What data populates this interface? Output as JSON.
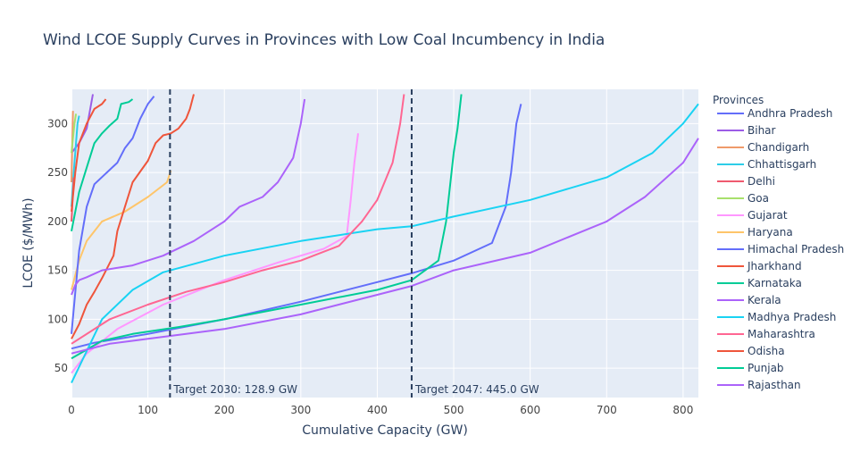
{
  "chart_data": {
    "type": "line",
    "title": "Wind LCOE Supply Curves in Provinces with Low Coal Incumbency in India",
    "xlabel": "Cumulative Capacity (GW)",
    "ylabel": "LCOE ($/MWh)",
    "xlim": [
      0,
      820
    ],
    "ylim": [
      20,
      335
    ],
    "xticks": [
      0,
      100,
      200,
      300,
      400,
      500,
      600,
      700,
      800
    ],
    "yticks": [
      50,
      100,
      150,
      200,
      250,
      300
    ],
    "grid": true,
    "legend_title": "Provinces",
    "legend_placement": "right",
    "targets": [
      {
        "x": 128.9,
        "label": "Target 2030: 128.9 GW"
      },
      {
        "x": 445.0,
        "label": "Target 2047: 445.0 GW"
      }
    ],
    "series": [
      {
        "name": "Andhra Pradesh",
        "color": "#636efa",
        "points": [
          [
            0,
            70
          ],
          [
            30,
            76
          ],
          [
            100,
            85
          ],
          [
            200,
            100
          ],
          [
            300,
            118
          ],
          [
            400,
            138
          ],
          [
            445,
            147
          ],
          [
            500,
            160
          ],
          [
            550,
            178
          ],
          [
            568,
            215
          ],
          [
            575,
            250
          ],
          [
            582,
            300
          ],
          [
            588,
            320
          ]
        ]
      },
      {
        "name": "Bihar",
        "color": "#9c5ce6",
        "points": [
          [
            0,
            270
          ],
          [
            10,
            280
          ],
          [
            20,
            295
          ],
          [
            28,
            330
          ]
        ]
      },
      {
        "name": "Chandigarh",
        "color": "#ef9a6a",
        "points": [
          [
            0,
            240
          ],
          [
            1,
            280
          ],
          [
            2,
            313
          ]
        ]
      },
      {
        "name": "Chhattisgarh",
        "color": "#2dcde8",
        "points": [
          [
            0,
            215
          ],
          [
            2,
            240
          ],
          [
            4,
            260
          ],
          [
            6,
            280
          ],
          [
            8,
            300
          ],
          [
            10,
            308
          ]
        ]
      },
      {
        "name": "Delhi",
        "color": "#ef5a6f",
        "points": [
          [
            0,
            200
          ],
          [
            1,
            215
          ],
          [
            2,
            230
          ],
          [
            3,
            245
          ]
        ]
      },
      {
        "name": "Goa",
        "color": "#a8e06c",
        "points": [
          [
            0,
            270
          ],
          [
            2,
            285
          ],
          [
            4,
            300
          ],
          [
            6,
            310
          ]
        ]
      },
      {
        "name": "Gujarat",
        "color": "#ff97ff",
        "points": [
          [
            0,
            45
          ],
          [
            20,
            65
          ],
          [
            60,
            90
          ],
          [
            120,
            115
          ],
          [
            200,
            140
          ],
          [
            270,
            158
          ],
          [
            330,
            172
          ],
          [
            360,
            185
          ],
          [
            365,
            220
          ],
          [
            370,
            260
          ],
          [
            375,
            290
          ]
        ]
      },
      {
        "name": "Haryana",
        "color": "#fec56a",
        "points": [
          [
            0,
            130
          ],
          [
            10,
            160
          ],
          [
            20,
            180
          ],
          [
            40,
            200
          ],
          [
            70,
            210
          ],
          [
            100,
            225
          ],
          [
            125,
            240
          ],
          [
            130,
            252
          ]
        ]
      },
      {
        "name": "Himachal Pradesh",
        "color": "#636efa",
        "points": [
          [
            0,
            85
          ],
          [
            10,
            170
          ],
          [
            20,
            215
          ],
          [
            30,
            238
          ],
          [
            60,
            260
          ],
          [
            70,
            275
          ],
          [
            80,
            285
          ],
          [
            90,
            305
          ],
          [
            100,
            320
          ],
          [
            108,
            328
          ]
        ]
      },
      {
        "name": "Jharkhand",
        "color": "#ef553b",
        "points": [
          [
            0,
            80
          ],
          [
            10,
            95
          ],
          [
            20,
            115
          ],
          [
            30,
            128
          ],
          [
            40,
            142
          ],
          [
            55,
            165
          ],
          [
            60,
            190
          ],
          [
            70,
            215
          ],
          [
            80,
            240
          ],
          [
            100,
            262
          ],
          [
            110,
            280
          ],
          [
            120,
            288
          ],
          [
            130,
            290
          ],
          [
            140,
            295
          ],
          [
            150,
            305
          ],
          [
            155,
            315
          ],
          [
            160,
            330
          ]
        ]
      },
      {
        "name": "Karnataka",
        "color": "#00cc96",
        "points": [
          [
            0,
            60
          ],
          [
            40,
            78
          ],
          [
            80,
            85
          ],
          [
            140,
            92
          ],
          [
            200,
            100
          ],
          [
            300,
            115
          ],
          [
            400,
            130
          ],
          [
            445,
            140
          ],
          [
            480,
            160
          ],
          [
            490,
            200
          ],
          [
            500,
            270
          ],
          [
            505,
            295
          ],
          [
            510,
            330
          ]
        ]
      },
      {
        "name": "Kerala",
        "color": "#ab63fa",
        "points": [
          [
            0,
            125
          ],
          [
            5,
            135
          ],
          [
            10,
            140
          ],
          [
            20,
            143
          ],
          [
            40,
            150
          ],
          [
            80,
            155
          ],
          [
            120,
            165
          ],
          [
            160,
            180
          ],
          [
            200,
            200
          ],
          [
            220,
            215
          ],
          [
            250,
            225
          ],
          [
            270,
            240
          ],
          [
            290,
            265
          ],
          [
            300,
            300
          ],
          [
            305,
            325
          ]
        ]
      },
      {
        "name": "Madhya Pradesh",
        "color": "#19d3f3",
        "points": [
          [
            0,
            35
          ],
          [
            40,
            100
          ],
          [
            80,
            130
          ],
          [
            120,
            148
          ],
          [
            200,
            165
          ],
          [
            300,
            180
          ],
          [
            400,
            192
          ],
          [
            445,
            195
          ],
          [
            500,
            205
          ],
          [
            600,
            222
          ],
          [
            700,
            245
          ],
          [
            760,
            270
          ],
          [
            800,
            300
          ],
          [
            820,
            320
          ]
        ]
      },
      {
        "name": "Maharashtra",
        "color": "#ff6692",
        "points": [
          [
            0,
            75
          ],
          [
            50,
            100
          ],
          [
            100,
            115
          ],
          [
            150,
            128
          ],
          [
            200,
            138
          ],
          [
            250,
            150
          ],
          [
            300,
            160
          ],
          [
            350,
            175
          ],
          [
            380,
            200
          ],
          [
            400,
            222
          ],
          [
            420,
            260
          ],
          [
            430,
            300
          ],
          [
            435,
            330
          ]
        ]
      },
      {
        "name": "Odisha",
        "color": "#ef553b",
        "points": [
          [
            0,
            210
          ],
          [
            5,
            250
          ],
          [
            10,
            280
          ],
          [
            20,
            300
          ],
          [
            30,
            315
          ],
          [
            40,
            320
          ],
          [
            45,
            325
          ]
        ]
      },
      {
        "name": "Punjab",
        "color": "#00cc96",
        "points": [
          [
            0,
            190
          ],
          [
            10,
            230
          ],
          [
            20,
            255
          ],
          [
            30,
            280
          ],
          [
            40,
            290
          ],
          [
            50,
            298
          ],
          [
            60,
            305
          ],
          [
            65,
            320
          ],
          [
            75,
            322
          ],
          [
            80,
            325
          ]
        ]
      },
      {
        "name": "Rajasthan",
        "color": "#ab63fa",
        "points": [
          [
            0,
            65
          ],
          [
            50,
            75
          ],
          [
            100,
            80
          ],
          [
            200,
            90
          ],
          [
            300,
            105
          ],
          [
            400,
            125
          ],
          [
            445,
            134
          ],
          [
            500,
            150
          ],
          [
            600,
            168
          ],
          [
            700,
            200
          ],
          [
            750,
            225
          ],
          [
            800,
            260
          ],
          [
            820,
            285
          ]
        ]
      }
    ]
  }
}
